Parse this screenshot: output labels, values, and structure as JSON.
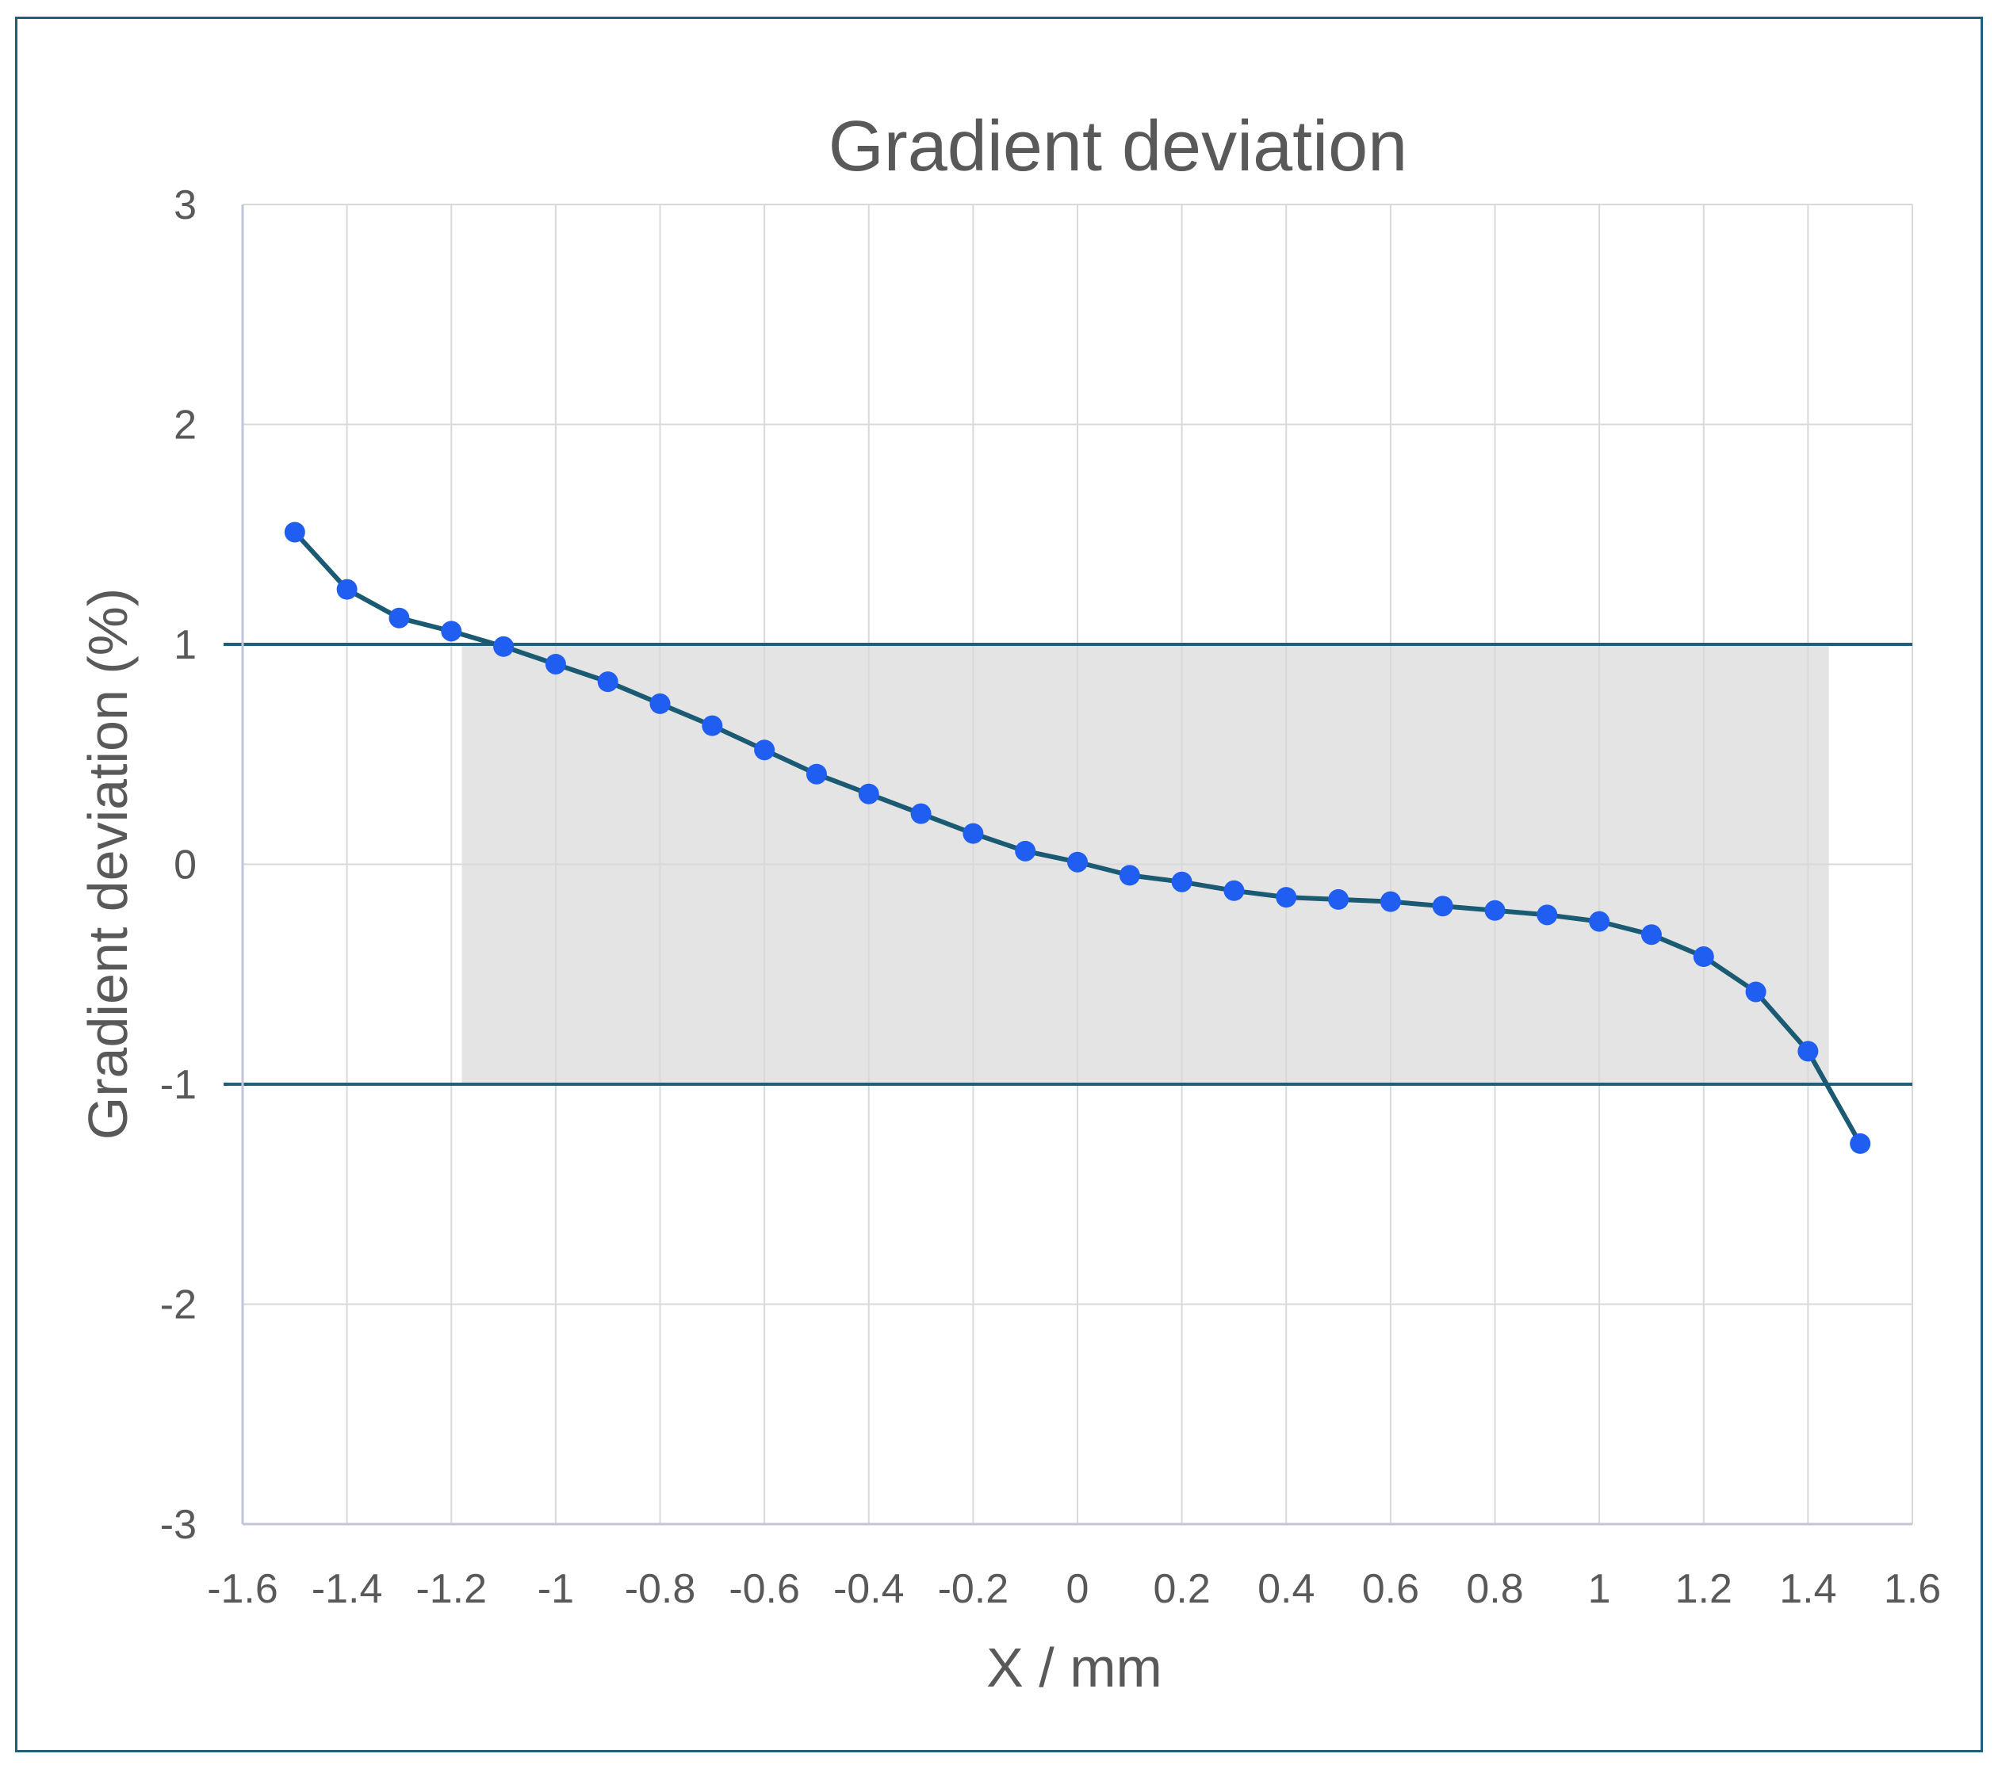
{
  "chart_data": {
    "type": "scatter",
    "title": "Gradient deviation",
    "xlabel": "X / mm",
    "ylabel": "Gradient deviation (%)",
    "xlim": [
      -1.6,
      1.6
    ],
    "ylim": [
      -3,
      3
    ],
    "x_ticks": [
      -1.6,
      -1.4,
      -1.2,
      -1,
      -0.8,
      -0.6,
      -0.4,
      -0.2,
      0,
      0.2,
      0.4,
      0.6,
      0.8,
      1,
      1.2,
      1.4,
      1.6
    ],
    "y_ticks": [
      -3,
      -2,
      -1,
      0,
      1,
      2,
      3
    ],
    "grid": true,
    "series": [
      {
        "x": [
          -1.5,
          -1.4,
          -1.3,
          -1.2,
          -1.1,
          -1.0,
          -0.9,
          -0.8,
          -0.7,
          -0.6,
          -0.5,
          -0.4,
          -0.3,
          -0.2,
          -0.1,
          0.0,
          0.1,
          0.2,
          0.3,
          0.4,
          0.5,
          0.6,
          0.7,
          0.8,
          0.9,
          1.0,
          1.1,
          1.2,
          1.3,
          1.4,
          1.5
        ],
        "y": [
          1.51,
          1.25,
          1.12,
          1.06,
          0.99,
          0.91,
          0.83,
          0.73,
          0.63,
          0.52,
          0.41,
          0.32,
          0.23,
          0.14,
          0.06,
          0.01,
          -0.05,
          -0.08,
          -0.12,
          -0.15,
          -0.16,
          -0.17,
          -0.19,
          -0.21,
          -0.23,
          -0.26,
          -0.32,
          -0.42,
          -0.58,
          -0.85,
          -1.27
        ],
        "color": "#1a5a73",
        "marker_color": "#1f5ef0"
      }
    ],
    "limit_lines": [
      1,
      -1
    ],
    "limit_line_color": "#1f5f7a",
    "shaded_band": {
      "x_range": [
        -1.18,
        1.44
      ],
      "y_range": [
        -1,
        1
      ],
      "color": "#e4e4e4"
    },
    "legend": "none"
  }
}
